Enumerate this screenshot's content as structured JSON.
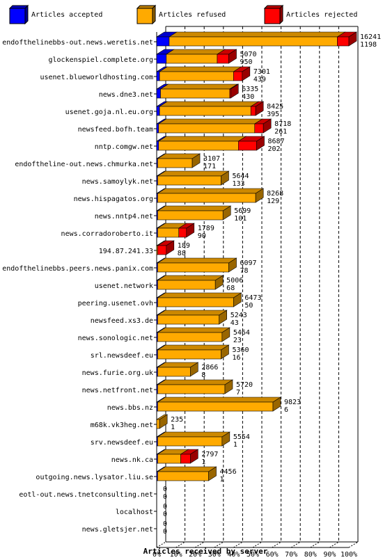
{
  "chart_data": {
    "type": "bar",
    "orientation": "horizontal",
    "stacked": true,
    "three_d": true,
    "xlabel": "Articles received by server",
    "xlim": [
      0,
      100
    ],
    "x_unit": "%",
    "x_ticks": [
      "0%",
      "10%",
      "20%",
      "30%",
      "40%",
      "50%",
      "60%",
      "70%",
      "80%",
      "90%",
      "100%"
    ],
    "legend_position": "top",
    "series": [
      {
        "name": "Articles accepted",
        "color": "#0000ff"
      },
      {
        "name": "Articles refused",
        "color": "#ffaa00"
      },
      {
        "name": "Articles rejected",
        "color": "#ff0000"
      }
    ],
    "rows": [
      {
        "host": "endofthelinebbs-out.news.weretis.net",
        "total": "16241",
        "rejected": "1198",
        "pct": [
          6.5,
          87.5,
          6.0
        ]
      },
      {
        "host": "glockenspiel.complete.org",
        "total": "5070",
        "rejected": "950",
        "pct": [
          5.0,
          26.5,
          6.0
        ]
      },
      {
        "host": "usenet.blueworldhosting.com",
        "total": "7301",
        "rejected": "439",
        "pct": [
          1.5,
          38.5,
          4.5
        ]
      },
      {
        "host": "news.dne3.net",
        "total": "6335",
        "rejected": "430",
        "pct": [
          2.0,
          36.0,
          0.5
        ]
      },
      {
        "host": "usenet.goja.nl.eu.org",
        "total": "8425",
        "rejected": "395",
        "pct": [
          1.5,
          47.5,
          2.5
        ]
      },
      {
        "host": "newsfeed.bofh.team",
        "total": "8718",
        "rejected": "261",
        "pct": [
          1.0,
          50.0,
          4.5
        ]
      },
      {
        "host": "nntp.comgw.net",
        "total": "8687",
        "rejected": "202",
        "pct": [
          1.0,
          41.5,
          9.5
        ]
      },
      {
        "host": "endoftheline-out.news.chmurka.net",
        "total": "3107",
        "rejected": "171",
        "pct": [
          0.5,
          18.0,
          0.0
        ]
      },
      {
        "host": "news.samoylyk.net",
        "total": "5644",
        "rejected": "133",
        "pct": [
          0.5,
          33.0,
          0.0
        ]
      },
      {
        "host": "news.hispagatos.org",
        "total": "8268",
        "rejected": "129",
        "pct": [
          0.5,
          51.0,
          0.0
        ]
      },
      {
        "host": "news.nntp4.net",
        "total": "5699",
        "rejected": "101",
        "pct": [
          0.5,
          34.0,
          0.0
        ]
      },
      {
        "host": "news.corradoroberto.it",
        "total": "1789",
        "rejected": "90",
        "pct": [
          0.5,
          11.0,
          4.0
        ]
      },
      {
        "host": "194.87.241.33",
        "total": "189",
        "rejected": "88",
        "pct": [
          0.0,
          0.5,
          4.5
        ]
      },
      {
        "host": "endofthelinebbs.peers.news.panix.com",
        "total": "6097",
        "rejected": "78",
        "pct": [
          0.5,
          37.0,
          0.0
        ]
      },
      {
        "host": "usenet.network",
        "total": "5006",
        "rejected": "68",
        "pct": [
          0.5,
          30.0,
          0.0
        ]
      },
      {
        "host": "peering.usenet.ovh",
        "total": "6473",
        "rejected": "50",
        "pct": [
          0.5,
          39.5,
          0.0
        ]
      },
      {
        "host": "newsfeed.xs3.de",
        "total": "5243",
        "rejected": "43",
        "pct": [
          0.5,
          32.0,
          0.0
        ]
      },
      {
        "host": "news.sonologic.net",
        "total": "5464",
        "rejected": "23",
        "pct": [
          0.5,
          33.5,
          0.0
        ]
      },
      {
        "host": "srl.newsdeef.eu",
        "total": "5360",
        "rejected": "16",
        "pct": [
          0.5,
          33.0,
          0.0
        ]
      },
      {
        "host": "news.furie.org.uk",
        "total": "2866",
        "rejected": "8",
        "pct": [
          0.5,
          17.0,
          0.0
        ]
      },
      {
        "host": "news.netfront.net",
        "total": "5720",
        "rejected": "7",
        "pct": [
          0.5,
          35.0,
          0.0
        ]
      },
      {
        "host": "news.bbs.nz",
        "total": "9823",
        "rejected": "6",
        "pct": [
          0.5,
          60.0,
          0.0
        ]
      },
      {
        "host": "m68k.vk3heg.net",
        "total": "235",
        "rejected": "1",
        "pct": [
          0.0,
          1.5,
          0.0
        ]
      },
      {
        "host": "srv.newsdeef.eu",
        "total": "5554",
        "rejected": "1",
        "pct": [
          0.5,
          33.5,
          0.0
        ]
      },
      {
        "host": "news.nk.ca",
        "total": "2797",
        "rejected": "1",
        "pct": [
          0.5,
          12.0,
          5.0
        ]
      },
      {
        "host": "outgoing.news.lysator.liu.se",
        "total": "4456",
        "rejected": "1",
        "pct": [
          0.5,
          26.5,
          0.0
        ]
      },
      {
        "host": "eotl-out.news.tnetconsulting.net",
        "total": "0",
        "rejected": "0",
        "pct": [
          0,
          0,
          0
        ]
      },
      {
        "host": "localhost",
        "total": "0",
        "rejected": "0",
        "pct": [
          0,
          0,
          0
        ]
      },
      {
        "host": "news.gletsjer.net",
        "total": "0",
        "rejected": "0",
        "pct": [
          0,
          0,
          0
        ]
      }
    ]
  }
}
